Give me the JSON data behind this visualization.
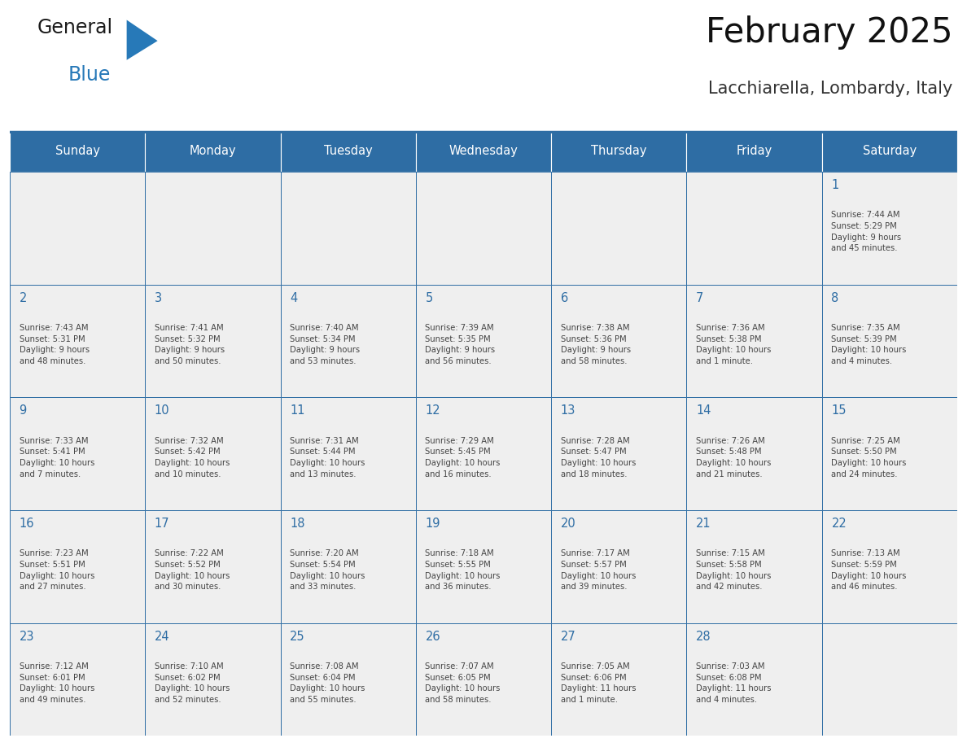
{
  "title": "February 2025",
  "subtitle": "Lacchiarella, Lombardy, Italy",
  "header_color": "#2E6DA4",
  "header_text_color": "#FFFFFF",
  "cell_bg_color": "#EFEFEF",
  "border_color": "#2E6DA4",
  "day_number_color": "#2E6DA4",
  "text_color": "#444444",
  "days_of_week": [
    "Sunday",
    "Monday",
    "Tuesday",
    "Wednesday",
    "Thursday",
    "Friday",
    "Saturday"
  ],
  "calendar_data": [
    [
      "",
      "",
      "",
      "",
      "",
      "",
      "1\nSunrise: 7:44 AM\nSunset: 5:29 PM\nDaylight: 9 hours\nand 45 minutes."
    ],
    [
      "2\nSunrise: 7:43 AM\nSunset: 5:31 PM\nDaylight: 9 hours\nand 48 minutes.",
      "3\nSunrise: 7:41 AM\nSunset: 5:32 PM\nDaylight: 9 hours\nand 50 minutes.",
      "4\nSunrise: 7:40 AM\nSunset: 5:34 PM\nDaylight: 9 hours\nand 53 minutes.",
      "5\nSunrise: 7:39 AM\nSunset: 5:35 PM\nDaylight: 9 hours\nand 56 minutes.",
      "6\nSunrise: 7:38 AM\nSunset: 5:36 PM\nDaylight: 9 hours\nand 58 minutes.",
      "7\nSunrise: 7:36 AM\nSunset: 5:38 PM\nDaylight: 10 hours\nand 1 minute.",
      "8\nSunrise: 7:35 AM\nSunset: 5:39 PM\nDaylight: 10 hours\nand 4 minutes."
    ],
    [
      "9\nSunrise: 7:33 AM\nSunset: 5:41 PM\nDaylight: 10 hours\nand 7 minutes.",
      "10\nSunrise: 7:32 AM\nSunset: 5:42 PM\nDaylight: 10 hours\nand 10 minutes.",
      "11\nSunrise: 7:31 AM\nSunset: 5:44 PM\nDaylight: 10 hours\nand 13 minutes.",
      "12\nSunrise: 7:29 AM\nSunset: 5:45 PM\nDaylight: 10 hours\nand 16 minutes.",
      "13\nSunrise: 7:28 AM\nSunset: 5:47 PM\nDaylight: 10 hours\nand 18 minutes.",
      "14\nSunrise: 7:26 AM\nSunset: 5:48 PM\nDaylight: 10 hours\nand 21 minutes.",
      "15\nSunrise: 7:25 AM\nSunset: 5:50 PM\nDaylight: 10 hours\nand 24 minutes."
    ],
    [
      "16\nSunrise: 7:23 AM\nSunset: 5:51 PM\nDaylight: 10 hours\nand 27 minutes.",
      "17\nSunrise: 7:22 AM\nSunset: 5:52 PM\nDaylight: 10 hours\nand 30 minutes.",
      "18\nSunrise: 7:20 AM\nSunset: 5:54 PM\nDaylight: 10 hours\nand 33 minutes.",
      "19\nSunrise: 7:18 AM\nSunset: 5:55 PM\nDaylight: 10 hours\nand 36 minutes.",
      "20\nSunrise: 7:17 AM\nSunset: 5:57 PM\nDaylight: 10 hours\nand 39 minutes.",
      "21\nSunrise: 7:15 AM\nSunset: 5:58 PM\nDaylight: 10 hours\nand 42 minutes.",
      "22\nSunrise: 7:13 AM\nSunset: 5:59 PM\nDaylight: 10 hours\nand 46 minutes."
    ],
    [
      "23\nSunrise: 7:12 AM\nSunset: 6:01 PM\nDaylight: 10 hours\nand 49 minutes.",
      "24\nSunrise: 7:10 AM\nSunset: 6:02 PM\nDaylight: 10 hours\nand 52 minutes.",
      "25\nSunrise: 7:08 AM\nSunset: 6:04 PM\nDaylight: 10 hours\nand 55 minutes.",
      "26\nSunrise: 7:07 AM\nSunset: 6:05 PM\nDaylight: 10 hours\nand 58 minutes.",
      "27\nSunrise: 7:05 AM\nSunset: 6:06 PM\nDaylight: 11 hours\nand 1 minute.",
      "28\nSunrise: 7:03 AM\nSunset: 6:08 PM\nDaylight: 11 hours\nand 4 minutes.",
      ""
    ]
  ],
  "logo_color_general": "#1a1a1a",
  "logo_color_blue": "#2779B8",
  "logo_triangle_color": "#2779B8",
  "fig_width": 11.88,
  "fig_height": 9.18
}
